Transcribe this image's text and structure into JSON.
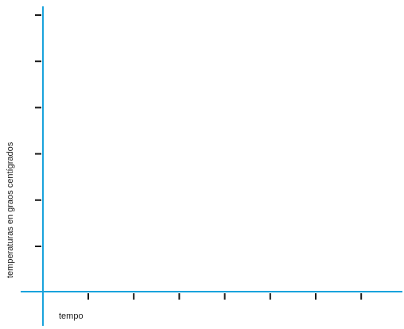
{
  "chart_data": {
    "type": "line",
    "title": "",
    "xlabel": "tempo",
    "ylabel": "temperaturas en graos centígrados",
    "x_tick_count": 7,
    "y_tick_count": 6,
    "series": [],
    "grid": false,
    "axis_color": "#1aa3dc",
    "tick_color": "#1a1a1a"
  }
}
